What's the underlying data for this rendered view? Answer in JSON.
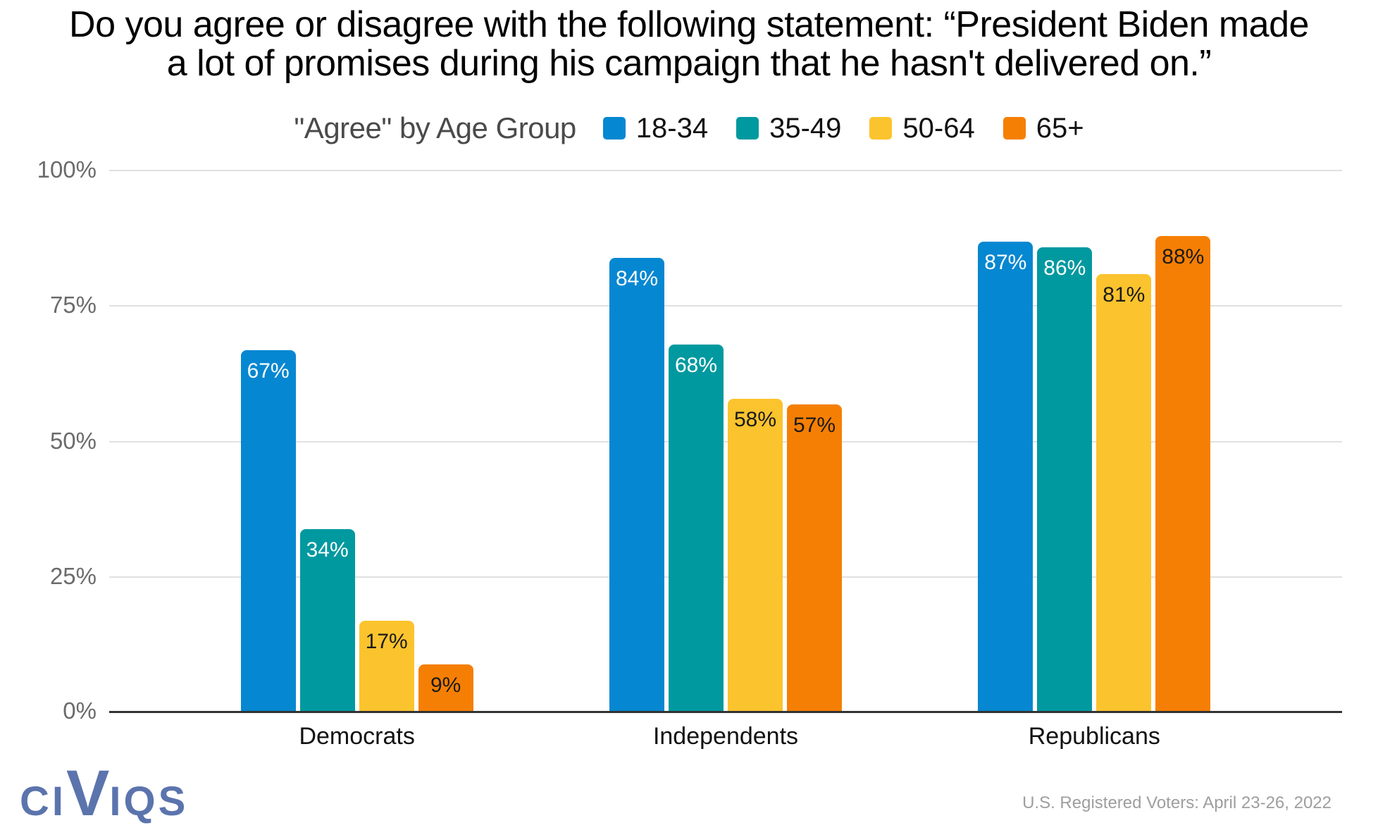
{
  "title": {
    "lines": [
      "Do you agree or disagree with the following statement: “President Biden made",
      "a lot of promises during his campaign that he hasn't delivered on.”"
    ]
  },
  "chart_data": {
    "type": "bar",
    "title": "Do you agree or disagree with the following statement: “President Biden made a lot of promises during his campaign that he hasn't delivered on.”",
    "legend_title": "\"Agree\" by Age Group",
    "legend_position": "top",
    "categories": [
      "Democrats",
      "Independents",
      "Republicans"
    ],
    "series": [
      {
        "name": "18-34",
        "color": "#0687d1",
        "label_color": "#ffffff",
        "values": [
          67,
          84,
          87
        ]
      },
      {
        "name": "35-49",
        "color": "#00999f",
        "label_color": "#ffffff",
        "values": [
          34,
          68,
          86
        ]
      },
      {
        "name": "50-64",
        "color": "#fbc32d",
        "label_color": "#1a1a1a",
        "values": [
          17,
          58,
          81
        ]
      },
      {
        "name": "65+",
        "color": "#f57f04",
        "label_color": "#1a1a1a",
        "values": [
          9,
          57,
          88
        ]
      }
    ],
    "value_suffix": "%",
    "y_ticks": [
      "0%",
      "25%",
      "50%",
      "75%",
      "100%"
    ],
    "ylim": [
      0,
      100
    ],
    "grid": true,
    "colors": {
      "gridline": "#e0e0e0",
      "axis_line": "#333333",
      "ytick_text": "#6b6b6b",
      "legend_title_text": "#4a4a4a",
      "category_text": "#111111"
    }
  },
  "footer": {
    "source": "U.S. Registered Voters: April 23-26, 2022",
    "logo": "CIVIQS",
    "logo_color": "#5b74ad"
  }
}
